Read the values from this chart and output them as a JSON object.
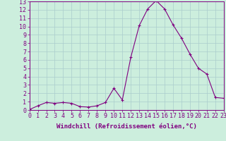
{
  "x": [
    0,
    1,
    2,
    3,
    4,
    5,
    6,
    7,
    8,
    9,
    10,
    11,
    12,
    13,
    14,
    15,
    16,
    17,
    18,
    19,
    20,
    21,
    22,
    23
  ],
  "y": [
    0.05,
    0.5,
    0.9,
    0.8,
    0.9,
    0.8,
    0.4,
    0.35,
    0.5,
    0.9,
    2.6,
    1.2,
    6.3,
    10.1,
    12.1,
    13.1,
    12.1,
    10.2,
    8.6,
    6.7,
    5.0,
    4.3,
    1.5,
    1.4
  ],
  "line_color": "#800080",
  "marker": "+",
  "bg_color": "#cceedd",
  "grid_color": "#aacccc",
  "xlabel": "Windchill (Refroidissement éolien,°C)",
  "ylabel_ticks": [
    0,
    1,
    2,
    3,
    4,
    5,
    6,
    7,
    8,
    9,
    10,
    11,
    12,
    13
  ],
  "xtick_labels": [
    "0",
    "1",
    "2",
    "3",
    "4",
    "5",
    "6",
    "7",
    "8",
    "9",
    "10",
    "11",
    "12",
    "13",
    "14",
    "15",
    "16",
    "17",
    "18",
    "19",
    "20",
    "21",
    "22",
    "23"
  ],
  "xlim": [
    0,
    23
  ],
  "ylim": [
    0,
    13
  ],
  "tick_color": "#800080",
  "label_fontsize": 6,
  "axis_fontsize": 6.5
}
